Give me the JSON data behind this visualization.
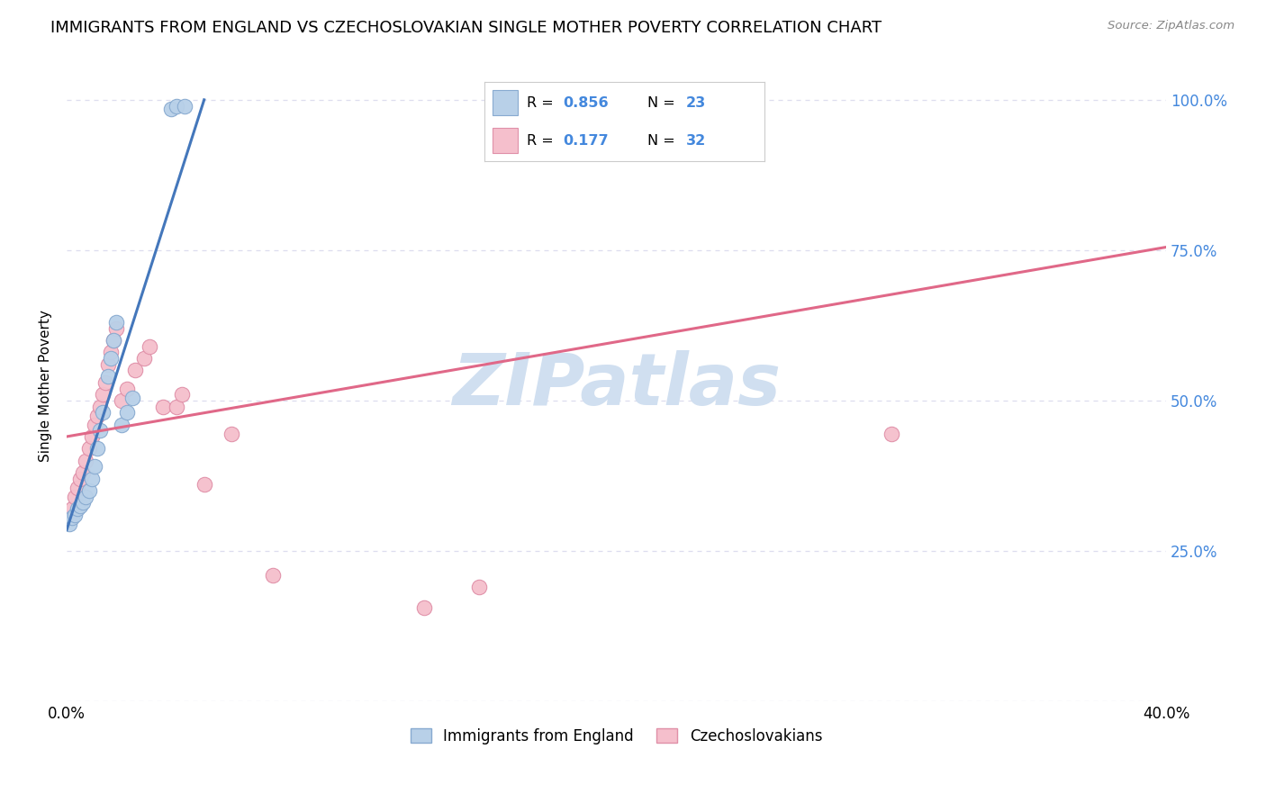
{
  "title": "IMMIGRANTS FROM ENGLAND VS CZECHOSLOVAKIAN SINGLE MOTHER POVERTY CORRELATION CHART",
  "source": "Source: ZipAtlas.com",
  "ylabel": "Single Mother Poverty",
  "xlim": [
    0.0,
    0.4
  ],
  "ylim": [
    0.0,
    1.05
  ],
  "england_color": "#b8d0e8",
  "england_edge_color": "#88aad0",
  "czech_color": "#f5bfcc",
  "czech_edge_color": "#e090a8",
  "england_R": 0.856,
  "england_N": 23,
  "czech_R": 0.177,
  "czech_N": 32,
  "england_line_color": "#4477bb",
  "czech_line_color": "#e06888",
  "watermark_text": "ZIPatlas",
  "watermark_color": "#d0dff0",
  "background_color": "#ffffff",
  "grid_color": "#ddddee",
  "right_ytick_color": "#4488dd",
  "legend_border_color": "#cccccc",
  "england_x": [
    0.001,
    0.002,
    0.003,
    0.004,
    0.005,
    0.006,
    0.007,
    0.008,
    0.009,
    0.01,
    0.011,
    0.012,
    0.013,
    0.015,
    0.016,
    0.017,
    0.018,
    0.02,
    0.022,
    0.024,
    0.038,
    0.04,
    0.043
  ],
  "england_y": [
    0.295,
    0.305,
    0.31,
    0.32,
    0.325,
    0.33,
    0.34,
    0.35,
    0.37,
    0.39,
    0.42,
    0.45,
    0.48,
    0.54,
    0.57,
    0.6,
    0.63,
    0.46,
    0.48,
    0.505,
    0.985,
    0.99,
    0.99
  ],
  "czech_x": [
    0.001,
    0.002,
    0.003,
    0.004,
    0.005,
    0.006,
    0.007,
    0.008,
    0.009,
    0.01,
    0.011,
    0.012,
    0.013,
    0.014,
    0.015,
    0.016,
    0.017,
    0.018,
    0.02,
    0.022,
    0.025,
    0.028,
    0.03,
    0.035,
    0.04,
    0.042,
    0.05,
    0.06,
    0.075,
    0.13,
    0.15,
    0.3
  ],
  "czech_y": [
    0.305,
    0.32,
    0.34,
    0.355,
    0.37,
    0.38,
    0.4,
    0.42,
    0.44,
    0.46,
    0.475,
    0.49,
    0.51,
    0.53,
    0.56,
    0.58,
    0.6,
    0.62,
    0.5,
    0.52,
    0.55,
    0.57,
    0.59,
    0.49,
    0.49,
    0.51,
    0.36,
    0.445,
    0.21,
    0.155,
    0.19,
    0.445
  ],
  "england_line_x": [
    0.0,
    0.05
  ],
  "england_line_y": [
    0.285,
    1.0
  ],
  "czech_line_x": [
    0.0,
    0.4
  ],
  "czech_line_y": [
    0.44,
    0.755
  ]
}
